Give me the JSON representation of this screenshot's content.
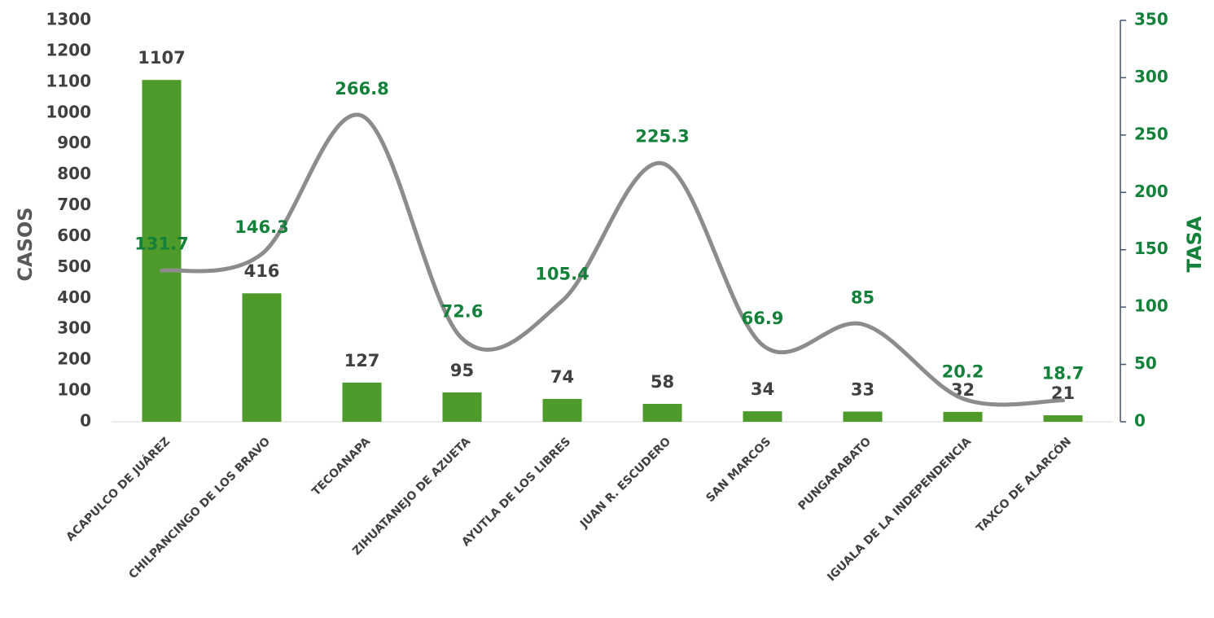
{
  "chart_data": {
    "type": "bar",
    "categories": [
      "ACAPULCO DE JUÁREZ",
      "CHILPANCINGO DE LOS BRAVO",
      "TECOANAPA",
      "ZIHUATANEJO DE AZUETA",
      "AYUTLA DE LOS LIBRES",
      "JUAN R. ESCUDERO",
      "SAN MARCOS",
      "PUNGARABATO",
      "IGUALA DE LA INDEPENDENCIA",
      "TAXCO DE ALARCÓN"
    ],
    "ylabel": "CASOS",
    "y2label": "TASA",
    "series": [
      {
        "type": "bar",
        "color": "#4e9a2b",
        "values": [
          1107,
          416,
          127,
          95,
          74,
          58,
          34,
          33,
          32,
          21
        ]
      },
      {
        "type": "line",
        "axis": "y2",
        "color": "#8c8c8c",
        "label_color": "#13813a",
        "values": [
          131.7,
          146.3,
          266.8,
          72.6,
          105.4,
          225.3,
          66.9,
          85,
          20.2,
          18.7
        ]
      }
    ],
    "ylim": [
      0,
      1300
    ],
    "yticks": [
      0,
      100,
      200,
      300,
      400,
      500,
      600,
      700,
      800,
      900,
      1000,
      1100,
      1200,
      1300
    ],
    "y2lim": [
      0,
      350
    ],
    "y2ticks": [
      0,
      50,
      100,
      150,
      200,
      250,
      300,
      350
    ]
  }
}
